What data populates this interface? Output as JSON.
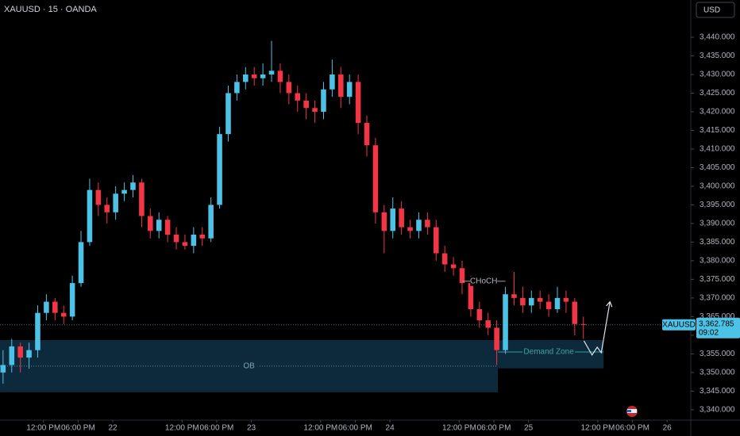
{
  "chart_data": {
    "type": "candlestick",
    "title": "XAUUSD · 15 · OANDA",
    "currency": "USD",
    "up_color": "#4cc3e6",
    "down_color": "#f23645",
    "xlim": [
      4.47,
      124.1
    ],
    "ylim": [
      3337.2,
      3450
    ],
    "xticks": [
      {
        "value": 12,
        "label": "12:00 PM"
      },
      {
        "value": 18,
        "label": "06:00 PM"
      },
      {
        "value": 24,
        "label": "22"
      },
      {
        "value": 36,
        "label": "12:00 PM"
      },
      {
        "value": 42,
        "label": "06:00 PM"
      },
      {
        "value": 48,
        "label": "23"
      },
      {
        "value": 60,
        "label": "12:00 PM"
      },
      {
        "value": 66,
        "label": "06:00 PM"
      },
      {
        "value": 72,
        "label": "24"
      },
      {
        "value": 84,
        "label": "12:00 PM"
      },
      {
        "value": 90,
        "label": "06:00 PM"
      },
      {
        "value": 96,
        "label": "25"
      },
      {
        "value": 108,
        "label": "12:00 PM"
      },
      {
        "value": 114,
        "label": "06:00 PM"
      },
      {
        "value": 120,
        "label": "26"
      }
    ],
    "yticks": [
      {
        "value": 3340,
        "label": "3,340.000"
      },
      {
        "value": 3345,
        "label": "3,345.000"
      },
      {
        "value": 3350,
        "label": "3,350.000"
      },
      {
        "value": 3355,
        "label": "3,355.000"
      },
      {
        "value": 3360,
        "label": "3,360.000"
      },
      {
        "value": 3365,
        "label": "3,365.000"
      },
      {
        "value": 3370,
        "label": "3,370.000"
      },
      {
        "value": 3375,
        "label": "3,375.000"
      },
      {
        "value": 3380,
        "label": "3,380.000"
      },
      {
        "value": 3385,
        "label": "3,385.000"
      },
      {
        "value": 3390,
        "label": "3,390.000"
      },
      {
        "value": 3395,
        "label": "3,395.000"
      },
      {
        "value": 3400,
        "label": "3,400.000"
      },
      {
        "value": 3405,
        "label": "3,405.000"
      },
      {
        "value": 3410,
        "label": "3,410.000"
      },
      {
        "value": 3415,
        "label": "3,415.000"
      },
      {
        "value": 3420,
        "label": "3,420.000"
      },
      {
        "value": 3425,
        "label": "3,425.000"
      },
      {
        "value": 3430,
        "label": "3,430.000"
      },
      {
        "value": 3435,
        "label": "3,435.000"
      },
      {
        "value": 3440,
        "label": "3,440.000"
      }
    ],
    "x": [
      5,
      6.5,
      8,
      9.5,
      11,
      12.5,
      14,
      15.5,
      17,
      18.5,
      20,
      21.5,
      23,
      24.5,
      26,
      27.5,
      29,
      30.5,
      32,
      33.5,
      35,
      36.5,
      38,
      39.5,
      41,
      42.5,
      44,
      45.5,
      47,
      48.5,
      50,
      51.5,
      53,
      54.5,
      56,
      57.5,
      59,
      60.5,
      62,
      63.5,
      65,
      66.5,
      68,
      69.5,
      71,
      72.5,
      74,
      75.5,
      77,
      78.5,
      80,
      81.5,
      83,
      84.5,
      86,
      87.5,
      89,
      90.5,
      92,
      93.5,
      95,
      96.5,
      98,
      99.5,
      101,
      102.5,
      104,
      105.5
    ],
    "ohlc": [
      [
        3350,
        3356,
        3347,
        3352
      ],
      [
        3352,
        3359,
        3350,
        3357
      ],
      [
        3357,
        3358,
        3350,
        3354
      ],
      [
        3354,
        3358,
        3351,
        3356
      ],
      [
        3356,
        3368,
        3354,
        3366
      ],
      [
        3366,
        3371,
        3364,
        3369
      ],
      [
        3369,
        3370,
        3364,
        3366
      ],
      [
        3366,
        3368,
        3363,
        3365
      ],
      [
        3365,
        3376,
        3364,
        3374
      ],
      [
        3374,
        3388,
        3373,
        3385
      ],
      [
        3385,
        3402,
        3384,
        3399
      ],
      [
        3399,
        3401,
        3392,
        3395
      ],
      [
        3395,
        3397,
        3390,
        3393
      ],
      [
        3393,
        3400,
        3391,
        3398
      ],
      [
        3398,
        3401,
        3396,
        3399
      ],
      [
        3399,
        3403,
        3397,
        3401
      ],
      [
        3401,
        3402,
        3389,
        3392
      ],
      [
        3392,
        3394,
        3386,
        3388
      ],
      [
        3388,
        3393,
        3386,
        3391
      ],
      [
        3391,
        3392,
        3385,
        3387
      ],
      [
        3387,
        3389,
        3383,
        3385
      ],
      [
        3385,
        3387,
        3383,
        3384
      ],
      [
        3384,
        3389,
        3382,
        3387
      ],
      [
        3387,
        3389,
        3384,
        3386
      ],
      [
        3386,
        3397,
        3385,
        3395
      ],
      [
        3395,
        3416,
        3394,
        3414
      ],
      [
        3414,
        3427,
        3412,
        3425
      ],
      [
        3425,
        3430,
        3423,
        3428
      ],
      [
        3428,
        3432,
        3426,
        3430
      ],
      [
        3430,
        3432,
        3427,
        3429
      ],
      [
        3429,
        3433,
        3427,
        3430
      ],
      [
        3430,
        3439,
        3428,
        3431
      ],
      [
        3431,
        3433,
        3425,
        3428
      ],
      [
        3428,
        3430,
        3422,
        3425
      ],
      [
        3425,
        3427,
        3420,
        3423
      ],
      [
        3423,
        3425,
        3418,
        3421
      ],
      [
        3421,
        3423,
        3417,
        3420
      ],
      [
        3420,
        3428,
        3418,
        3426
      ],
      [
        3426,
        3434,
        3424,
        3430
      ],
      [
        3430,
        3432,
        3421,
        3424
      ],
      [
        3424,
        3430,
        3422,
        3428
      ],
      [
        3428,
        3430,
        3414,
        3417
      ],
      [
        3417,
        3419,
        3408,
        3411
      ],
      [
        3411,
        3413,
        3390,
        3393
      ],
      [
        3393,
        3395,
        3382,
        3388
      ],
      [
        3388,
        3397,
        3386,
        3394
      ],
      [
        3394,
        3396,
        3387,
        3389
      ],
      [
        3389,
        3391,
        3386,
        3388
      ],
      [
        3388,
        3393,
        3386,
        3391
      ],
      [
        3391,
        3393,
        3387,
        3389
      ],
      [
        3389,
        3391,
        3380,
        3382
      ],
      [
        3382,
        3384,
        3377,
        3379
      ],
      [
        3379,
        3381,
        3376,
        3378
      ],
      [
        3378,
        3380,
        3371,
        3374
      ],
      [
        3374,
        3376,
        3365,
        3367
      ],
      [
        3367,
        3369,
        3362,
        3364
      ],
      [
        3364,
        3366,
        3360,
        3362
      ],
      [
        3362,
        3364,
        3352,
        3356
      ],
      [
        3356,
        3373,
        3355,
        3371
      ],
      [
        3371,
        3377,
        3368,
        3370
      ],
      [
        3370,
        3373,
        3366,
        3368
      ],
      [
        3368,
        3372,
        3366,
        3370
      ],
      [
        3370,
        3372,
        3367,
        3369
      ],
      [
        3369,
        3371,
        3365,
        3367
      ],
      [
        3367,
        3373,
        3366,
        3370
      ],
      [
        3370,
        3372,
        3366,
        3369
      ],
      [
        3369,
        3370,
        3360,
        3363
      ],
      [
        3363,
        3365,
        3359,
        3362.785
      ]
    ],
    "last_price": {
      "value": 3362.785,
      "label": "3,362.785"
    },
    "symbol_tag": "XAUUSD",
    "countdown": "09:02",
    "zones": [
      {
        "label": "OB",
        "x": [
          4.47,
          90.7
        ],
        "y": [
          3344.7,
          3358.7
        ],
        "line": 3351.7
      },
      {
        "label": "Demand Zone",
        "x": [
          90.7,
          109
        ],
        "y": [
          3351.1,
          3358.7
        ],
        "line": 3355.5
      }
    ],
    "choch": {
      "label": "CHoCH",
      "x": [
        84.5,
        92
      ],
      "y": 3374.5
    },
    "projection": {
      "x": [
        105.6,
        107,
        107.9,
        108.6,
        110.1
      ],
      "y": [
        3358.5,
        3354.7,
        3356.8,
        3355.3,
        3369
      ]
    }
  }
}
